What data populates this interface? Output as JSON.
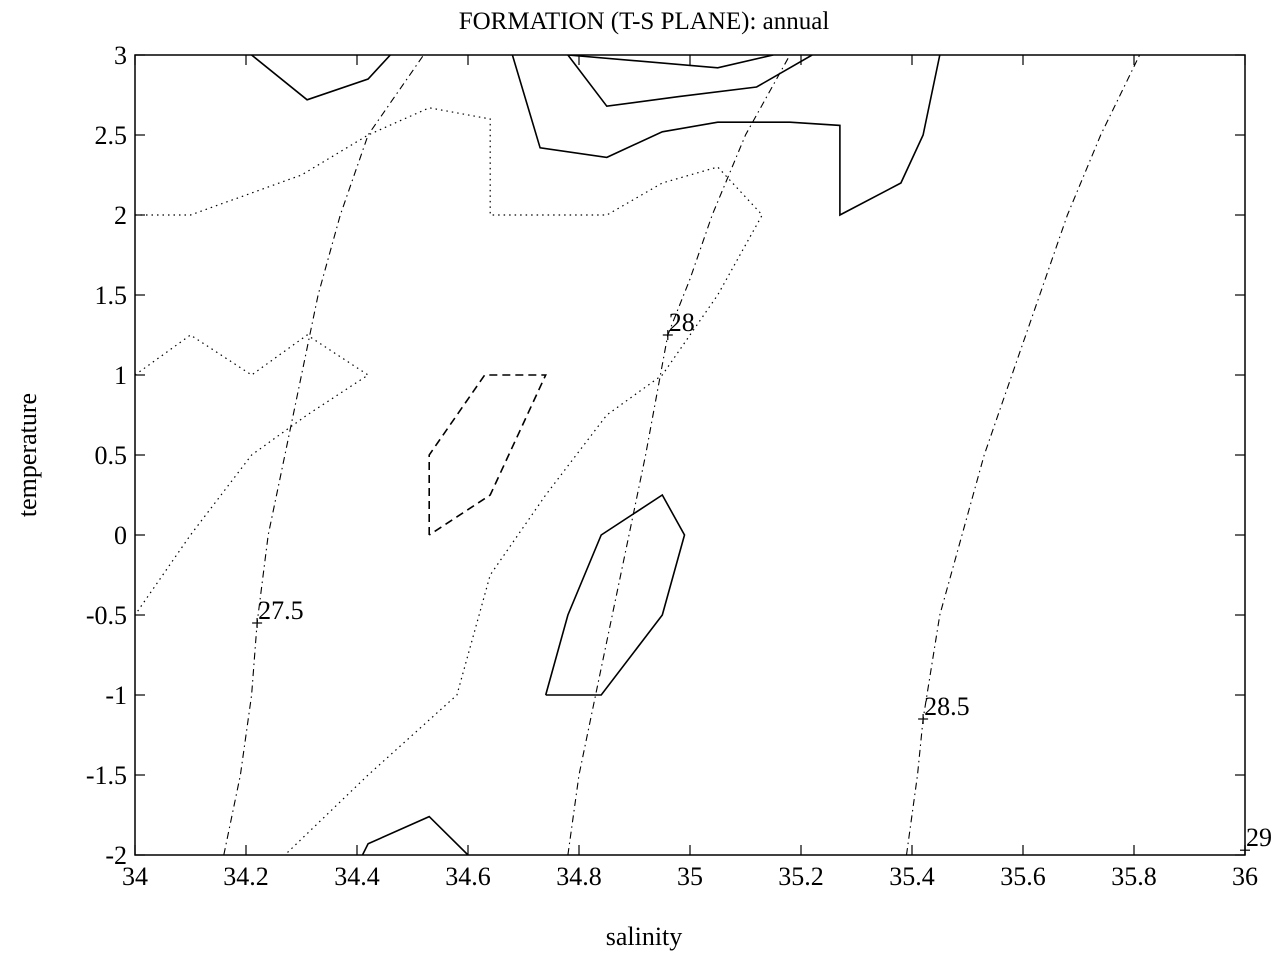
{
  "chart_data": {
    "type": "line",
    "title": "FORMATION (T-S PLANE): annual",
    "xlabel": "salinity",
    "ylabel": "temperature",
    "xlim": [
      34,
      36
    ],
    "ylim": [
      -2,
      3
    ],
    "x_ticks": [
      34,
      34.2,
      34.4,
      34.6,
      34.8,
      35,
      35.2,
      35.4,
      35.6,
      35.8,
      36
    ],
    "x_tick_labels": [
      "34",
      "34.2",
      "34.4",
      "34.6",
      "34.8",
      "35",
      "35.2",
      "35.4",
      "35.6",
      "35.8",
      "36"
    ],
    "y_ticks": [
      3,
      2.5,
      2,
      1.5,
      1,
      0.5,
      0,
      -0.5,
      -1,
      -1.5,
      -2
    ],
    "y_tick_labels": [
      "3",
      "2.5",
      "2",
      "1.5",
      "1",
      "0.5",
      "0",
      "-0.5",
      "-1",
      "-1.5",
      "-2"
    ],
    "grid": false,
    "density_contours": [
      {
        "label": "27.5",
        "label_at": {
          "x": 34.22,
          "y": -0.55
        },
        "points": [
          [
            34.16,
            -2
          ],
          [
            34.19,
            -1.5
          ],
          [
            34.21,
            -1
          ],
          [
            34.22,
            -0.55
          ],
          [
            34.24,
            0
          ],
          [
            34.27,
            0.5
          ],
          [
            34.3,
            1
          ],
          [
            34.33,
            1.5
          ],
          [
            34.37,
            2
          ],
          [
            34.42,
            2.5
          ],
          [
            34.52,
            3
          ]
        ]
      },
      {
        "label": "28",
        "label_at": {
          "x": 34.96,
          "y": 1.25
        },
        "points": [
          [
            34.78,
            -2
          ],
          [
            34.8,
            -1.5
          ],
          [
            34.83,
            -1
          ],
          [
            34.86,
            -0.5
          ],
          [
            34.89,
            0
          ],
          [
            34.92,
            0.5
          ],
          [
            34.96,
            1.25
          ],
          [
            35.0,
            1.6
          ],
          [
            35.04,
            2
          ],
          [
            35.1,
            2.5
          ],
          [
            35.18,
            3
          ]
        ]
      },
      {
        "label": "28.5",
        "label_at": {
          "x": 35.42,
          "y": -1.15
        },
        "points": [
          [
            35.39,
            -2
          ],
          [
            35.41,
            -1.5
          ],
          [
            35.42,
            -1.15
          ],
          [
            35.45,
            -0.5
          ],
          [
            35.49,
            0
          ],
          [
            35.53,
            0.5
          ],
          [
            35.58,
            1
          ],
          [
            35.63,
            1.5
          ],
          [
            35.68,
            2
          ],
          [
            35.74,
            2.5
          ],
          [
            35.81,
            3
          ]
        ]
      },
      {
        "label": "29",
        "label_at": {
          "x": 36.0,
          "y": -1.97
        },
        "points": []
      }
    ],
    "solid_contours": [
      [
        [
          34.21,
          3
        ],
        [
          34.31,
          2.72
        ],
        [
          34.42,
          2.85
        ],
        [
          34.46,
          3
        ]
      ],
      [
        [
          34.68,
          3
        ],
        [
          34.73,
          2.42
        ],
        [
          34.85,
          2.36
        ],
        [
          34.95,
          2.52
        ],
        [
          35.05,
          2.58
        ],
        [
          35.18,
          2.58
        ],
        [
          35.27,
          2.56
        ],
        [
          35.27,
          2.0
        ],
        [
          35.38,
          2.2
        ],
        [
          35.42,
          2.5
        ],
        [
          35.45,
          3
        ]
      ],
      [
        [
          34.78,
          3
        ],
        [
          34.85,
          2.68
        ],
        [
          34.98,
          2.74
        ],
        [
          35.12,
          2.8
        ],
        [
          35.22,
          3
        ]
      ],
      [
        [
          34.78,
          3
        ],
        [
          35.05,
          2.92
        ],
        [
          35.15,
          3
        ]
      ],
      [
        [
          34.74,
          -1.0
        ],
        [
          34.78,
          -0.5
        ],
        [
          34.84,
          0
        ],
        [
          34.95,
          0.25
        ],
        [
          34.99,
          0
        ],
        [
          34.95,
          -0.5
        ],
        [
          34.84,
          -1.0
        ],
        [
          34.74,
          -1.0
        ]
      ],
      [
        [
          34.41,
          -2
        ],
        [
          34.42,
          -1.93
        ],
        [
          34.53,
          -1.76
        ],
        [
          34.6,
          -2
        ]
      ]
    ],
    "dashed_contours": [
      [
        [
          34.53,
          0
        ],
        [
          34.53,
          0.5
        ],
        [
          34.63,
          1.0
        ],
        [
          34.74,
          1.0
        ],
        [
          34.64,
          0.25
        ],
        [
          34.53,
          0
        ]
      ]
    ],
    "dotted_contours": [
      [
        [
          34.0,
          2.0
        ],
        [
          34.1,
          2.0
        ],
        [
          34.3,
          2.25
        ],
        [
          34.42,
          2.5
        ],
        [
          34.53,
          2.67
        ],
        [
          34.64,
          2.6
        ],
        [
          34.64,
          2.0
        ],
        [
          34.85,
          2.0
        ],
        [
          34.95,
          2.2
        ],
        [
          35.05,
          2.3
        ],
        [
          35.13,
          2.0
        ],
        [
          35.05,
          1.5
        ],
        [
          34.95,
          1.0
        ],
        [
          34.85,
          0.75
        ],
        [
          34.74,
          0.25
        ],
        [
          34.64,
          -0.25
        ],
        [
          34.58,
          -1.0
        ],
        [
          34.42,
          -1.5
        ],
        [
          34.27,
          -2.0
        ]
      ],
      [
        [
          34.0,
          1.0
        ],
        [
          34.1,
          1.25
        ],
        [
          34.21,
          1.0
        ],
        [
          34.31,
          1.25
        ],
        [
          34.42,
          1.0
        ],
        [
          34.31,
          0.75
        ],
        [
          34.21,
          0.5
        ],
        [
          34.1,
          0
        ],
        [
          34.0,
          -0.5
        ]
      ]
    ]
  }
}
